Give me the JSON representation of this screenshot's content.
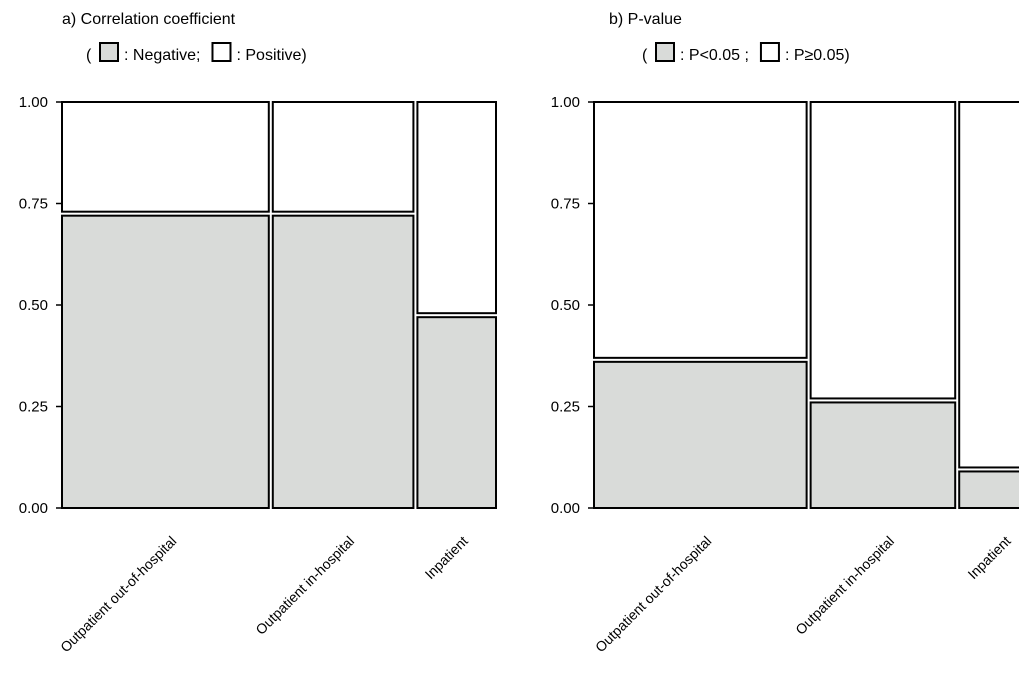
{
  "colors": {
    "negative": "#d9dbd9",
    "positive": "#ffffff",
    "stroke": "#000000"
  },
  "chart_data": [
    {
      "type": "mosaic",
      "title": "a) Correlation coefficient",
      "legend": {
        "open": "(",
        "items": [
          {
            "swatch": "#d9dbd9",
            "label": ": Negative;"
          },
          {
            "swatch": "#ffffff",
            "label": ": Positive)"
          }
        ]
      },
      "ylim": [
        0,
        1
      ],
      "yticks": [
        "1.00",
        "0.75",
        "0.50",
        "0.25",
        "0.00"
      ],
      "categories": [
        "Outpatient out-of-hospital",
        "Outpatient in-hospital",
        "Inpatient"
      ],
      "widths": [
        0.5,
        0.34,
        0.19
      ],
      "series": [
        {
          "name": "Negative",
          "values": [
            0.72,
            0.72,
            0.47
          ]
        },
        {
          "name": "Positive",
          "values": [
            0.28,
            0.28,
            0.53
          ]
        }
      ]
    },
    {
      "type": "mosaic",
      "title": "b) P-value",
      "legend": {
        "open": "(",
        "items": [
          {
            "swatch": "#d9dbd9",
            "label": ": P<0.05 ;"
          },
          {
            "swatch": "#ffffff",
            "label": ": P≥0.05)"
          }
        ]
      },
      "ylim": [
        0,
        1
      ],
      "yticks": [
        "1.00",
        "0.75",
        "0.50",
        "0.25",
        "0.00"
      ],
      "categories": [
        "Outpatient out-of-hospital",
        "Outpatient in-hospital",
        "Inpatient"
      ],
      "widths": [
        0.5,
        0.34,
        0.19
      ],
      "series": [
        {
          "name": "P<0.05",
          "values": [
            0.36,
            0.26,
            0.09
          ]
        },
        {
          "name": "P≥0.05",
          "values": [
            0.64,
            0.74,
            0.91
          ]
        }
      ]
    }
  ]
}
